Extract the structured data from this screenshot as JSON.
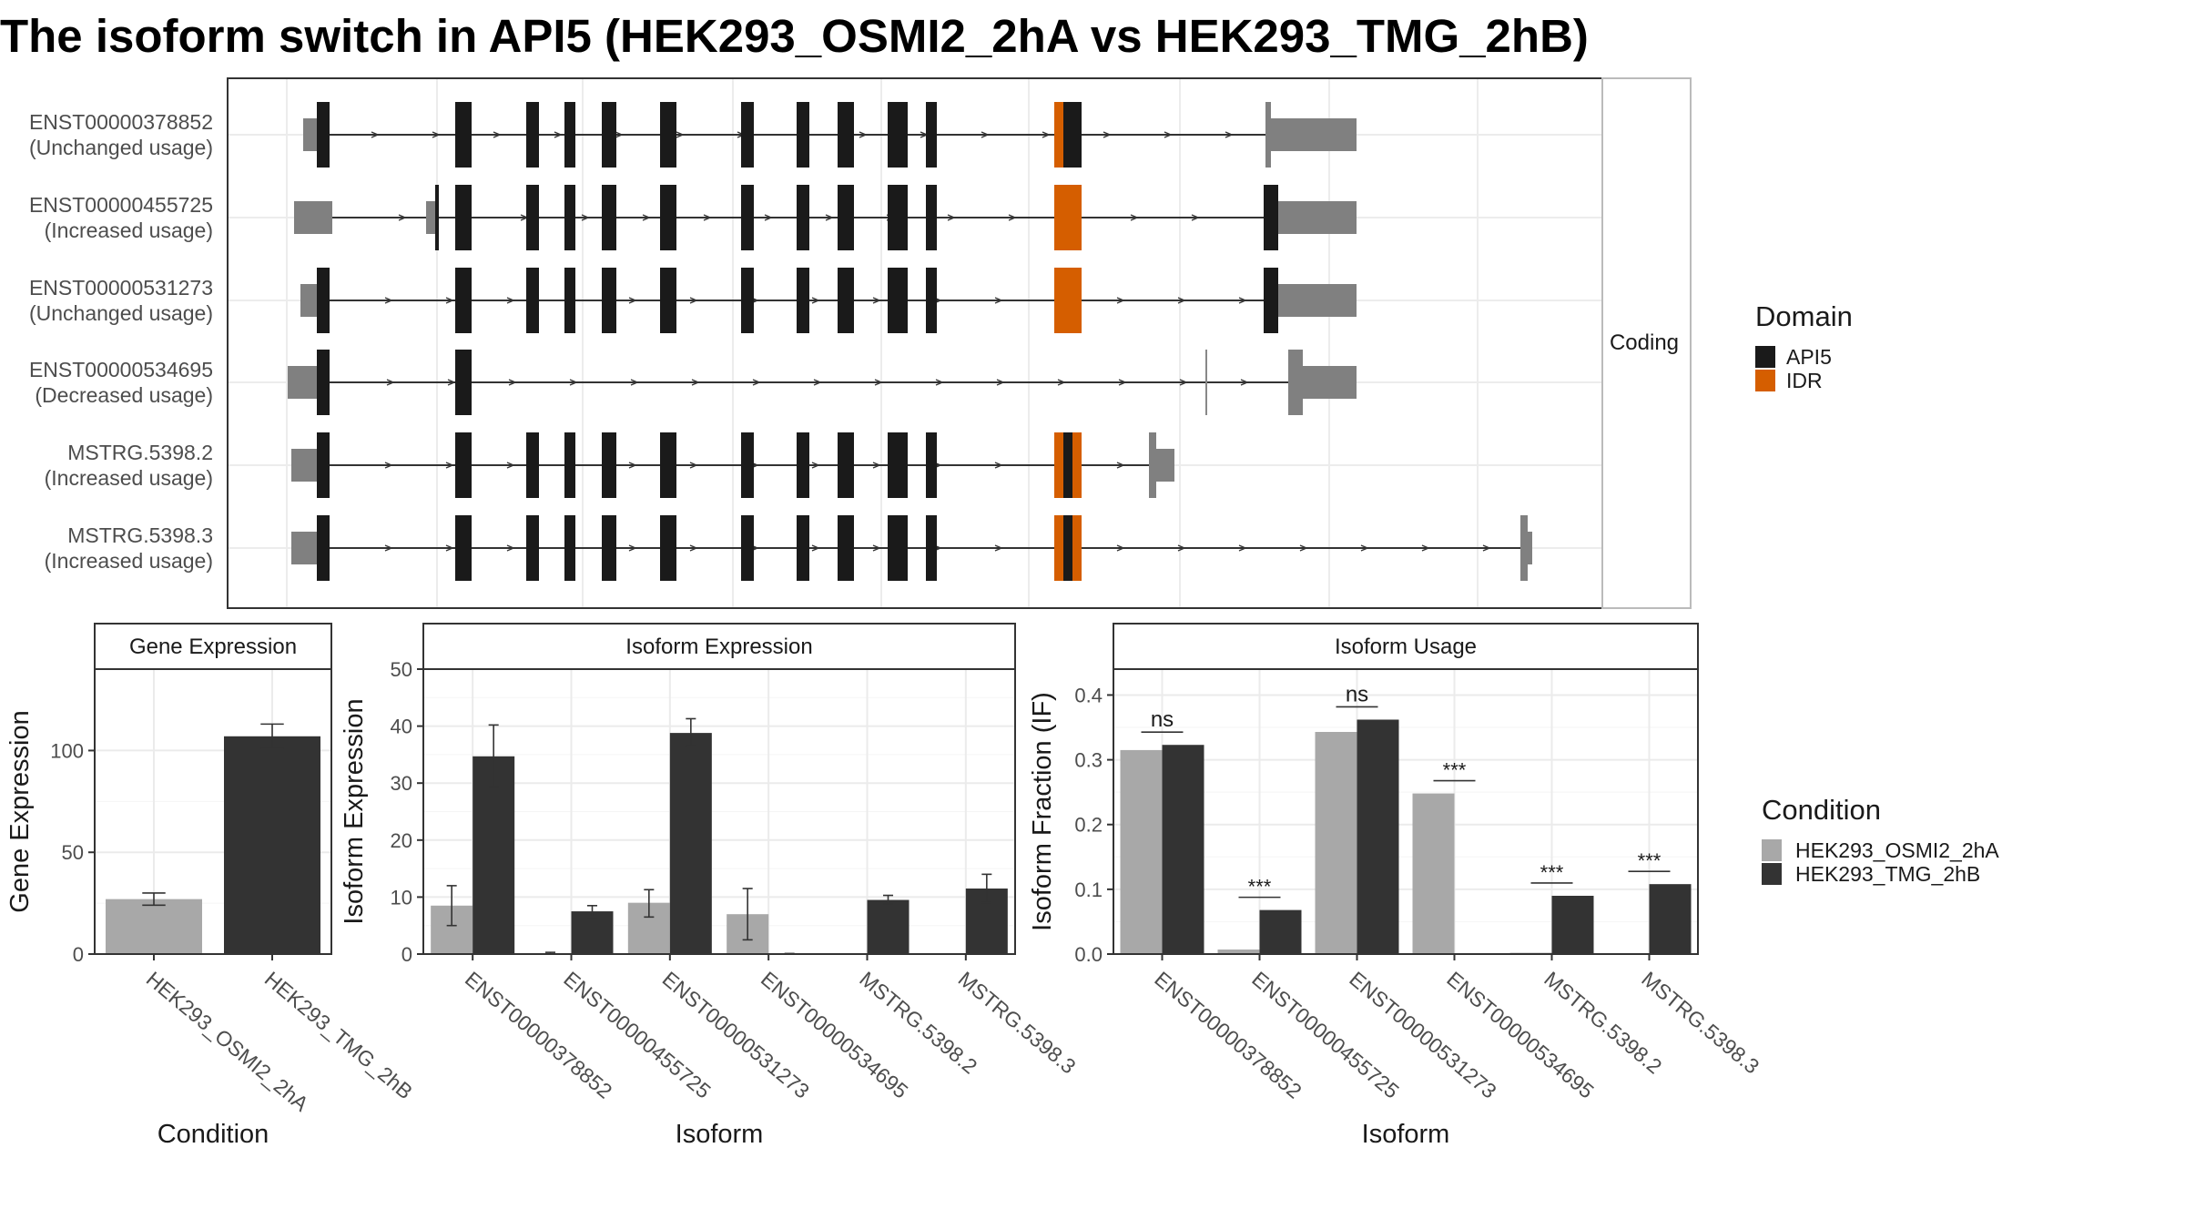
{
  "title": "The isoform switch in API5 (HEK293_OSMI2_2hA vs HEK293_TMG_2hB)",
  "colors": {
    "api5": "#1a1a1a",
    "idr": "#d55e00",
    "utr": "#808080",
    "cond1": "#a8a8a8",
    "cond2": "#333333"
  },
  "chart_data": [
    {
      "type": "gene-structure",
      "strip_label": "Coding",
      "transcripts": [
        {
          "id": "ENST00000378852",
          "usage": "(Unchanged usage)"
        },
        {
          "id": "ENST00000455725",
          "usage": "(Increased usage)"
        },
        {
          "id": "ENST00000531273",
          "usage": "(Unchanged usage)"
        },
        {
          "id": "ENST00000534695",
          "usage": "(Decreased usage)"
        },
        {
          "id": "MSTRG.5398.2",
          "usage": "(Increased usage)"
        },
        {
          "id": "MSTRG.5398.3",
          "usage": "(Increased usage)"
        }
      ],
      "legend": {
        "title": "Domain",
        "items": [
          "API5",
          "IDR"
        ]
      }
    },
    {
      "type": "bar",
      "strip_label": "Gene Expression",
      "xlabel": "Condition",
      "ylabel": "Gene Expression",
      "categories": [
        "HEK293_OSMI2_2hA",
        "HEK293_TMG_2hB"
      ],
      "values": [
        27,
        107
      ],
      "errors": [
        [
          24,
          30
        ],
        [
          101,
          113
        ]
      ],
      "ylim": [
        0,
        140
      ],
      "yticks": [
        0,
        50,
        100
      ]
    },
    {
      "type": "bar",
      "strip_label": "Isoform Expression",
      "xlabel": "Isoform",
      "ylabel": "Isoform Expression",
      "categories": [
        "ENST00000378852",
        "ENST00000455725",
        "ENST00000531273",
        "ENST00000534695",
        "MSTRG.5398.2",
        "MSTRG.5398.3"
      ],
      "series": [
        {
          "values": [
            8.5,
            0.1,
            9.0,
            7.0,
            0.0,
            0.1
          ],
          "errors": [
            [
              5.0,
              12.0
            ],
            [
              0.0,
              0.3
            ],
            [
              6.5,
              11.3
            ],
            [
              2.5,
              11.5
            ],
            [
              0.0,
              0.0
            ],
            [
              0.0,
              0.0
            ]
          ]
        },
        {
          "values": [
            34.7,
            7.5,
            38.8,
            0.1,
            9.5,
            11.5
          ],
          "errors": [
            [
              29.3,
              40.2
            ],
            [
              6.5,
              8.5
            ],
            [
              36.5,
              41.3
            ],
            [
              0.0,
              0.1
            ],
            [
              8.8,
              10.3
            ],
            [
              9.0,
              14.0
            ]
          ]
        }
      ],
      "ylim": [
        0,
        50
      ],
      "yticks": [
        0,
        10,
        20,
        30,
        40,
        50
      ]
    },
    {
      "type": "bar",
      "strip_label": "Isoform Usage",
      "xlabel": "Isoform",
      "ylabel": "Isoform Fraction (IF)",
      "categories": [
        "ENST00000378852",
        "ENST00000455725",
        "ENST00000531273",
        "ENST00000534695",
        "MSTRG.5398.2",
        "MSTRG.5398.3"
      ],
      "series": [
        {
          "values": [
            0.315,
            0.007,
            0.343,
            0.248,
            0.002,
            0.0
          ]
        },
        {
          "values": [
            0.323,
            0.068,
            0.362,
            0.0,
            0.09,
            0.108
          ]
        }
      ],
      "significance": [
        "ns",
        "***",
        "ns",
        "***",
        "***",
        "***"
      ],
      "ylim": [
        0,
        0.44
      ],
      "yticks": [
        0.0,
        0.1,
        0.2,
        0.3,
        0.4
      ],
      "ytick_labels": [
        "0.0",
        "0.1",
        "0.2",
        "0.3",
        "0.4"
      ]
    }
  ],
  "condition_legend": {
    "title": "Condition",
    "items": [
      "HEK293_OSMI2_2hA",
      "HEK293_TMG_2hB"
    ]
  }
}
